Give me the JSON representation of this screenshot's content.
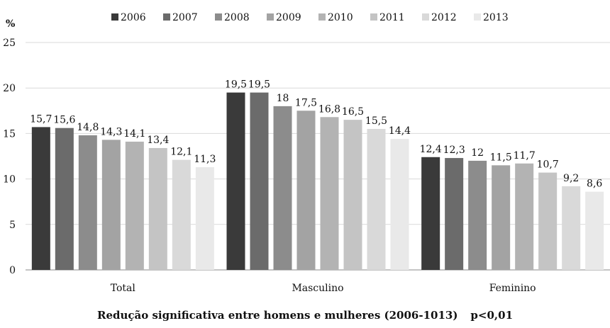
{
  "chart_data": {
    "type": "bar",
    "y_unit": "%",
    "categories": [
      "Total",
      "Masculino",
      "Feminino"
    ],
    "series": [
      {
        "name": "2006",
        "values": [
          15.7,
          19.5,
          12.4
        ],
        "labels": [
          "15,7",
          "19,5",
          "12,4"
        ],
        "color": "#3a3a3a"
      },
      {
        "name": "2007",
        "values": [
          15.6,
          19.5,
          12.3
        ],
        "labels": [
          "15,6",
          "19,5",
          "12,3"
        ],
        "color": "#6b6b6b"
      },
      {
        "name": "2008",
        "values": [
          14.8,
          18,
          12
        ],
        "labels": [
          "14,8",
          "18",
          "12"
        ],
        "color": "#8c8c8c"
      },
      {
        "name": "2009",
        "values": [
          14.3,
          17.5,
          11.5
        ],
        "labels": [
          "14,3",
          "17,5",
          "11,5"
        ],
        "color": "#a3a3a3"
      },
      {
        "name": "2010",
        "values": [
          14.1,
          16.8,
          11.7
        ],
        "labels": [
          "14,1",
          "16,8",
          "11,7"
        ],
        "color": "#b3b3b3"
      },
      {
        "name": "2011",
        "values": [
          13.4,
          16.5,
          10.7
        ],
        "labels": [
          "13,4",
          "16,5",
          "10,7"
        ],
        "color": "#c4c4c4"
      },
      {
        "name": "2012",
        "values": [
          12.1,
          15.5,
          9.2
        ],
        "labels": [
          "12,1",
          "15,5",
          "9,2"
        ],
        "color": "#d9d9d9"
      },
      {
        "name": "2013",
        "values": [
          11.3,
          14.4,
          8.6
        ],
        "labels": [
          "11,3",
          "14,4",
          "8,6"
        ],
        "color": "#e9e9e9"
      }
    ],
    "ylim": [
      0,
      25
    ],
    "yticks": [
      0,
      5,
      10,
      15,
      20,
      25
    ],
    "grid": true,
    "legend_position": "top"
  },
  "footer": {
    "text": "Redução significativa entre homens e mulheres (2006-1013)",
    "pvalue": "p<0,01"
  }
}
